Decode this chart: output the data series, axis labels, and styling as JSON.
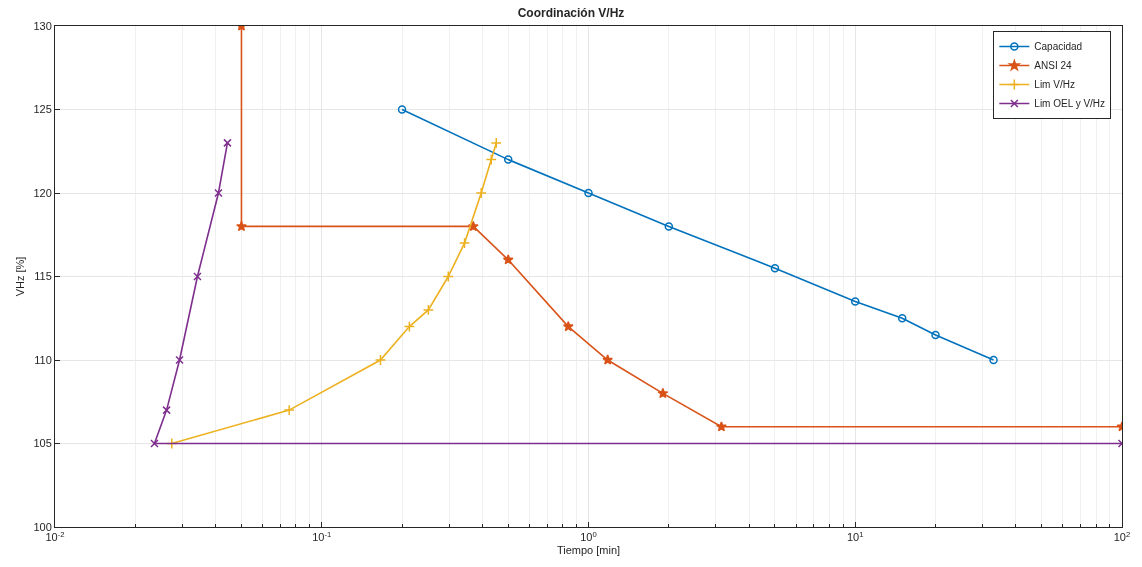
{
  "chart_data": {
    "type": "line",
    "title": "Coordinación V/Hz",
    "xlabel": "Tiempo [min]",
    "ylabel": "VHz [%]",
    "log": "x",
    "grid": true,
    "legend": "top right",
    "line_style": "solid",
    "xlim": [
      0.01,
      100
    ],
    "xticks": [
      {
        "value": 0.01,
        "label": "10$^{-2}$"
      },
      {
        "value": 0.1,
        "label": "10$^{-1}$"
      },
      {
        "value": 1,
        "label": "10$^{0}$"
      },
      {
        "value": 10,
        "label": "10$^{1}$"
      },
      {
        "value": 100,
        "label": "10$^{2}$"
      }
    ],
    "ylim": [
      100,
      130
    ],
    "yticks": [
      100,
      105,
      110,
      115,
      120,
      125,
      130
    ],
    "series": [
      {
        "name": "Capacidad",
        "color": "#0072bd",
        "marker": "circle",
        "x": [
          0.2,
          0.5,
          1,
          2,
          5,
          10,
          15,
          20,
          33
        ],
        "values": [
          125,
          122,
          120,
          118,
          115.5,
          113.5,
          112.5,
          111.5,
          110
        ]
      },
      {
        "name": "ANSI 24",
        "color": "#d95319",
        "marker": "star",
        "x": [
          0.05,
          0.05,
          0.37,
          0.5,
          0.84,
          1.18,
          1.9,
          3.15,
          100
        ],
        "values": [
          130,
          118,
          118,
          116,
          112,
          110,
          108,
          106,
          106
        ]
      },
      {
        "name": "Lim V/Hz",
        "color": "#edb120",
        "marker": "cross",
        "x": [
          0.0274,
          0.0755,
          0.166,
          0.213,
          0.251,
          0.298,
          0.343,
          0.396,
          0.432,
          0.451
        ],
        "values": [
          105,
          107,
          110,
          112,
          113,
          115,
          117,
          120,
          122,
          123
        ]
      },
      {
        "name": "Lim OEL y V/Hz",
        "color": "#7e2f8e",
        "marker": "x",
        "x": [
          0.0443,
          0.041,
          0.0342,
          0.0293,
          0.0262,
          0.0236,
          100
        ],
        "values": [
          123,
          120,
          115,
          110,
          107,
          105,
          105
        ]
      }
    ]
  }
}
